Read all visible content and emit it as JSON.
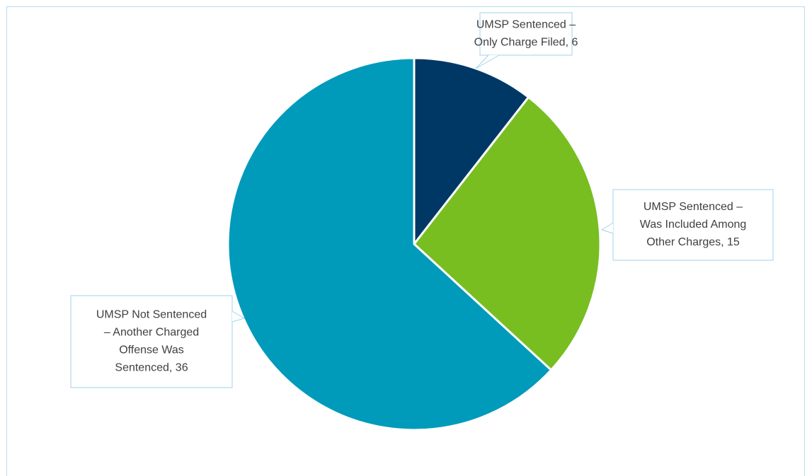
{
  "chart_data": {
    "type": "pie",
    "categories": [
      [
        "UMSP Sentenced –",
        "Only Charge Filed, 6"
      ],
      [
        "UMSP Sentenced –",
        "Was Included Among",
        "Other Charges, 15"
      ],
      [
        "UMSP Not Sentenced",
        "– Another Charged",
        "Offense Was",
        "Sentenced, 36"
      ]
    ],
    "values": [
      6,
      15,
      36
    ],
    "colors": [
      "#003865",
      "#78be20",
      "#009abb"
    ],
    "start_angle": 0,
    "direction": "clockwise"
  }
}
